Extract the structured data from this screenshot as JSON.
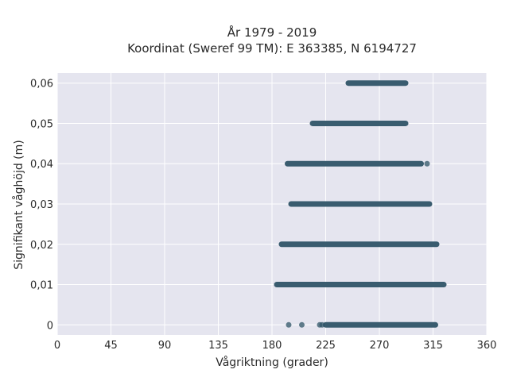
{
  "chart_data": {
    "type": "scatter",
    "title_line1": "År 1979 - 2019",
    "title_line2": "Koordinat (Sweref 99 TM): E 363385, N 6194727",
    "xlabel": "Vågriktning (grader)",
    "ylabel": "Signifikant våghöjd (m)",
    "xlim": [
      0,
      360
    ],
    "ylim": [
      -0.0025,
      0.0625
    ],
    "x_ticks": [
      0,
      45,
      90,
      135,
      180,
      225,
      270,
      315,
      360
    ],
    "x_tick_labels": [
      "0",
      "45",
      "90",
      "135",
      "180",
      "225",
      "270",
      "315",
      "360"
    ],
    "y_ticks": [
      0,
      0.01,
      0.02,
      0.03,
      0.04,
      0.05,
      0.06
    ],
    "y_tick_labels": [
      "0",
      "0,01",
      "0,02",
      "0,03",
      "0,04",
      "0,05",
      "0,06"
    ],
    "grid": true,
    "colors": {
      "background": "#e5e5ef",
      "marker": "#2f5467"
    },
    "series": [
      {
        "bands": [
          {
            "y": 0.06,
            "x_min": 244,
            "x_max": 292
          },
          {
            "y": 0.05,
            "x_min": 214,
            "x_max": 292
          },
          {
            "y": 0.04,
            "x_min": 193,
            "x_max": 305,
            "outliers": [
              310
            ]
          },
          {
            "y": 0.03,
            "x_min": 196,
            "x_max": 312
          },
          {
            "y": 0.02,
            "x_min": 188,
            "x_max": 318
          },
          {
            "y": 0.01,
            "x_min": 184,
            "x_max": 324
          },
          {
            "y": 0.0,
            "x_min": 225,
            "x_max": 317,
            "outliers": [
              194,
              205,
              220,
              222
            ]
          }
        ]
      }
    ]
  }
}
